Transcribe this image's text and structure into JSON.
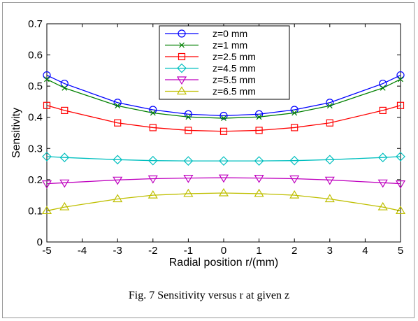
{
  "caption": "Fig. 7 Sensitivity versus r at given z",
  "chart_data": {
    "type": "line",
    "xlabel": "Radial position r/(mm)",
    "ylabel": "Sensitivity",
    "xlim": [
      -5,
      5
    ],
    "ylim": [
      0,
      0.7
    ],
    "xticks": [
      -5,
      -4,
      -3,
      -2,
      -1,
      0,
      1,
      2,
      3,
      4,
      5
    ],
    "yticks": [
      0,
      0.1,
      0.2,
      0.3,
      0.4,
      0.5,
      0.6,
      0.7
    ],
    "legend_position": "top-center",
    "grid": false,
    "x": [
      -5,
      -4.5,
      -3,
      -2,
      -1,
      0,
      1,
      2,
      3,
      4.5,
      5
    ],
    "series": [
      {
        "name": "z=0 mm",
        "color": "#0000ff",
        "marker": "circle",
        "values": [
          0.535,
          0.508,
          0.447,
          0.424,
          0.41,
          0.405,
          0.41,
          0.424,
          0.447,
          0.508,
          0.535
        ]
      },
      {
        "name": "z=1 mm",
        "color": "#008000",
        "marker": "x",
        "values": [
          0.522,
          0.494,
          0.437,
          0.414,
          0.401,
          0.397,
          0.401,
          0.414,
          0.437,
          0.494,
          0.522
        ]
      },
      {
        "name": "z=2.5 mm",
        "color": "#ff0000",
        "marker": "square",
        "values": [
          0.438,
          0.422,
          0.382,
          0.367,
          0.358,
          0.355,
          0.358,
          0.367,
          0.382,
          0.422,
          0.438
        ]
      },
      {
        "name": "z=4.5 mm",
        "color": "#00bfbf",
        "marker": "diamond",
        "values": [
          0.274,
          0.271,
          0.264,
          0.261,
          0.26,
          0.26,
          0.26,
          0.261,
          0.264,
          0.271,
          0.274
        ]
      },
      {
        "name": "z=5.5 mm",
        "color": "#bf00bf",
        "marker": "triangle-down",
        "values": [
          0.187,
          0.19,
          0.199,
          0.203,
          0.205,
          0.206,
          0.205,
          0.203,
          0.199,
          0.19,
          0.187
        ]
      },
      {
        "name": "z=6.5 mm",
        "color": "#bfbf00",
        "marker": "triangle-up",
        "values": [
          0.1,
          0.112,
          0.138,
          0.15,
          0.155,
          0.157,
          0.155,
          0.15,
          0.138,
          0.112,
          0.1
        ]
      }
    ]
  }
}
